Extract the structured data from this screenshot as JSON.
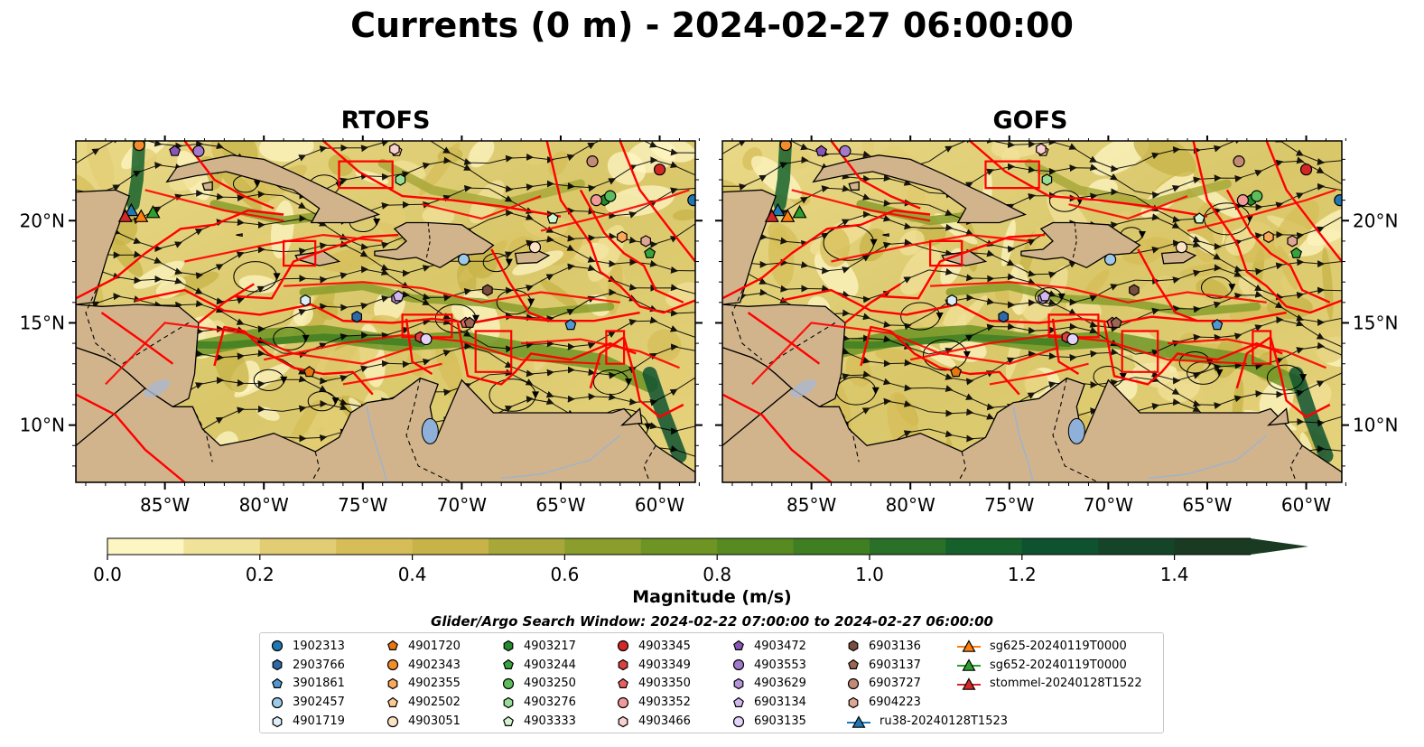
{
  "title": "Currents (0 m) - 2024-02-27 06:00:00",
  "panels": [
    {
      "title": "RTOFS"
    },
    {
      "title": "GOFS"
    }
  ],
  "lon_ticks": [
    "85°W",
    "80°W",
    "75°W",
    "70°W",
    "65°W",
    "60°W"
  ],
  "lat_ticks": [
    "20°N",
    "15°N",
    "10°N"
  ],
  "map_extent": {
    "lon": [
      -89.5,
      -58.2
    ],
    "lat": [
      7.2,
      23.9
    ]
  },
  "colorbar": {
    "label": "Magnitude (m/s)",
    "ticks": [
      "0.0",
      "0.2",
      "0.4",
      "0.6",
      "0.8",
      "1.0",
      "1.2",
      "1.4"
    ],
    "range": [
      0,
      1.5
    ],
    "extend": "max",
    "colors": [
      "#fdf6c3",
      "#f1e29a",
      "#e3cd74",
      "#d6bd58",
      "#c7b347",
      "#a8a83a",
      "#8a9d2d",
      "#6e9424",
      "#578b21",
      "#3f7f22",
      "#2a7028",
      "#16602b",
      "#0f5230",
      "#154528",
      "#1a3a22"
    ]
  },
  "colors": {
    "land": "#d2b48c",
    "eez": "#ff0000",
    "streamline": "#000000"
  },
  "search_window": "Glider/Argo Search Window: 2024-02-22 07:00:00 to 2024-02-27 06:00:00",
  "legend": [
    {
      "label": "1902313",
      "marker": "circle",
      "color": "#1f77b4"
    },
    {
      "label": "2903766",
      "marker": "hexagon",
      "color": "#2e6aa8"
    },
    {
      "label": "3901861",
      "marker": "pentagon",
      "color": "#4f98d4"
    },
    {
      "label": "3902457",
      "marker": "circle",
      "color": "#9ecae9"
    },
    {
      "label": "4901719",
      "marker": "hexagon",
      "color": "#ddeefa"
    },
    {
      "label": "4901720",
      "marker": "pentagon",
      "color": "#e6760d"
    },
    {
      "label": "4902343",
      "marker": "circle",
      "color": "#f58c2c"
    },
    {
      "label": "4902355",
      "marker": "hexagon",
      "color": "#fba85a"
    },
    {
      "label": "4902502",
      "marker": "pentagon",
      "color": "#fdc88f"
    },
    {
      "label": "4903051",
      "marker": "circle",
      "color": "#fde3c6"
    },
    {
      "label": "4903217",
      "marker": "hexagon",
      "color": "#238b2e"
    },
    {
      "label": "4903244",
      "marker": "pentagon",
      "color": "#36a33d"
    },
    {
      "label": "4903250",
      "marker": "circle",
      "color": "#5cbd5c"
    },
    {
      "label": "4903276",
      "marker": "hexagon",
      "color": "#98dd96"
    },
    {
      "label": "4903333",
      "marker": "pentagon",
      "color": "#d2f5cd"
    },
    {
      "label": "4903345",
      "marker": "circle",
      "color": "#d62728"
    },
    {
      "label": "4903349",
      "marker": "hexagon",
      "color": "#dc4040"
    },
    {
      "label": "4903350",
      "marker": "pentagon",
      "color": "#e86060"
    },
    {
      "label": "4903352",
      "marker": "circle",
      "color": "#f29a9a"
    },
    {
      "label": "4903466",
      "marker": "hexagon",
      "color": "#fbd0d0"
    },
    {
      "label": "4903472",
      "marker": "pentagon",
      "color": "#8a55b8"
    },
    {
      "label": "4903553",
      "marker": "circle",
      "color": "#a37acb"
    },
    {
      "label": "4903629",
      "marker": "hexagon",
      "color": "#b694dc"
    },
    {
      "label": "6903134",
      "marker": "pentagon",
      "color": "#d2b6f0"
    },
    {
      "label": "6903135",
      "marker": "circle",
      "color": "#e4d2f8"
    },
    {
      "label": "6903136",
      "marker": "hexagon",
      "color": "#7a4e3f"
    },
    {
      "label": "6903137",
      "marker": "pentagon",
      "color": "#9c6755"
    },
    {
      "label": "6903727",
      "marker": "circle",
      "color": "#c48a76"
    },
    {
      "label": "6904223",
      "marker": "hexagon",
      "color": "#dfa696"
    },
    {
      "label": "ru38-20240128T1523",
      "marker": "triangle-line",
      "color": "#1f77b4"
    },
    {
      "label": "sg625-20240119T0000",
      "marker": "triangle-line",
      "color": "#ff7f0e"
    },
    {
      "label": "sg652-20240119T0000",
      "marker": "triangle-line",
      "color": "#2ca02c"
    },
    {
      "label": "stommel-20240128T1522",
      "marker": "triangle-line",
      "color": "#d62728"
    }
  ],
  "platform_positions": [
    {
      "id": "1902313",
      "lon": -58.3,
      "lat": 21.0
    },
    {
      "id": "2903766",
      "lon": -75.3,
      "lat": 15.3
    },
    {
      "id": "3901861",
      "lon": -64.5,
      "lat": 14.9
    },
    {
      "id": "3902457",
      "lon": -69.9,
      "lat": 18.1
    },
    {
      "id": "4901719",
      "lon": -77.9,
      "lat": 16.1
    },
    {
      "id": "4901720",
      "lon": -77.7,
      "lat": 12.6
    },
    {
      "id": "4902343",
      "lon": -86.3,
      "lat": 23.7
    },
    {
      "id": "4902355",
      "lon": -61.9,
      "lat": 19.2
    },
    {
      "id": "4902502",
      "lon": -73.3,
      "lat": 23.4
    },
    {
      "id": "4903051",
      "lon": -66.3,
      "lat": 18.7
    },
    {
      "id": "4903217",
      "lon": -62.8,
      "lat": 21.0
    },
    {
      "id": "4903244",
      "lon": -60.5,
      "lat": 18.4
    },
    {
      "id": "4903250",
      "lon": -62.5,
      "lat": 21.2
    },
    {
      "id": "4903276",
      "lon": -73.1,
      "lat": 22.0
    },
    {
      "id": "4903333",
      "lon": -65.4,
      "lat": 20.1
    },
    {
      "id": "4903345",
      "lon": -60.0,
      "lat": 22.5
    },
    {
      "id": "4903349",
      "lon": -72.1,
      "lat": 14.3
    },
    {
      "id": "4903350",
      "lon": -69.8,
      "lat": 15.0
    },
    {
      "id": "4903352",
      "lon": -63.2,
      "lat": 21.0
    },
    {
      "id": "4903466",
      "lon": -73.4,
      "lat": 23.5
    },
    {
      "id": "4903472",
      "lon": -84.5,
      "lat": 23.4
    },
    {
      "id": "4903553",
      "lon": -83.3,
      "lat": 23.4
    },
    {
      "id": "4903629",
      "lon": -73.3,
      "lat": 16.2
    },
    {
      "id": "6903134",
      "lon": -73.2,
      "lat": 16.3
    },
    {
      "id": "6903135",
      "lon": -71.8,
      "lat": 14.2
    },
    {
      "id": "6903136",
      "lon": -68.7,
      "lat": 16.6
    },
    {
      "id": "6903137",
      "lon": -69.6,
      "lat": 15.0
    },
    {
      "id": "6903727",
      "lon": -63.4,
      "lat": 22.9
    },
    {
      "id": "6904223",
      "lon": -60.7,
      "lat": 19.0
    },
    {
      "id": "ru38-20240128T1523",
      "lon": -86.7,
      "lat": 20.5
    },
    {
      "id": "sg625-20240119T0000",
      "lon": -86.2,
      "lat": 20.2
    },
    {
      "id": "sg652-20240119T0000",
      "lon": -85.6,
      "lat": 20.4
    },
    {
      "id": "stommel-20240128T1522",
      "lon": -87.0,
      "lat": 20.2
    }
  ]
}
